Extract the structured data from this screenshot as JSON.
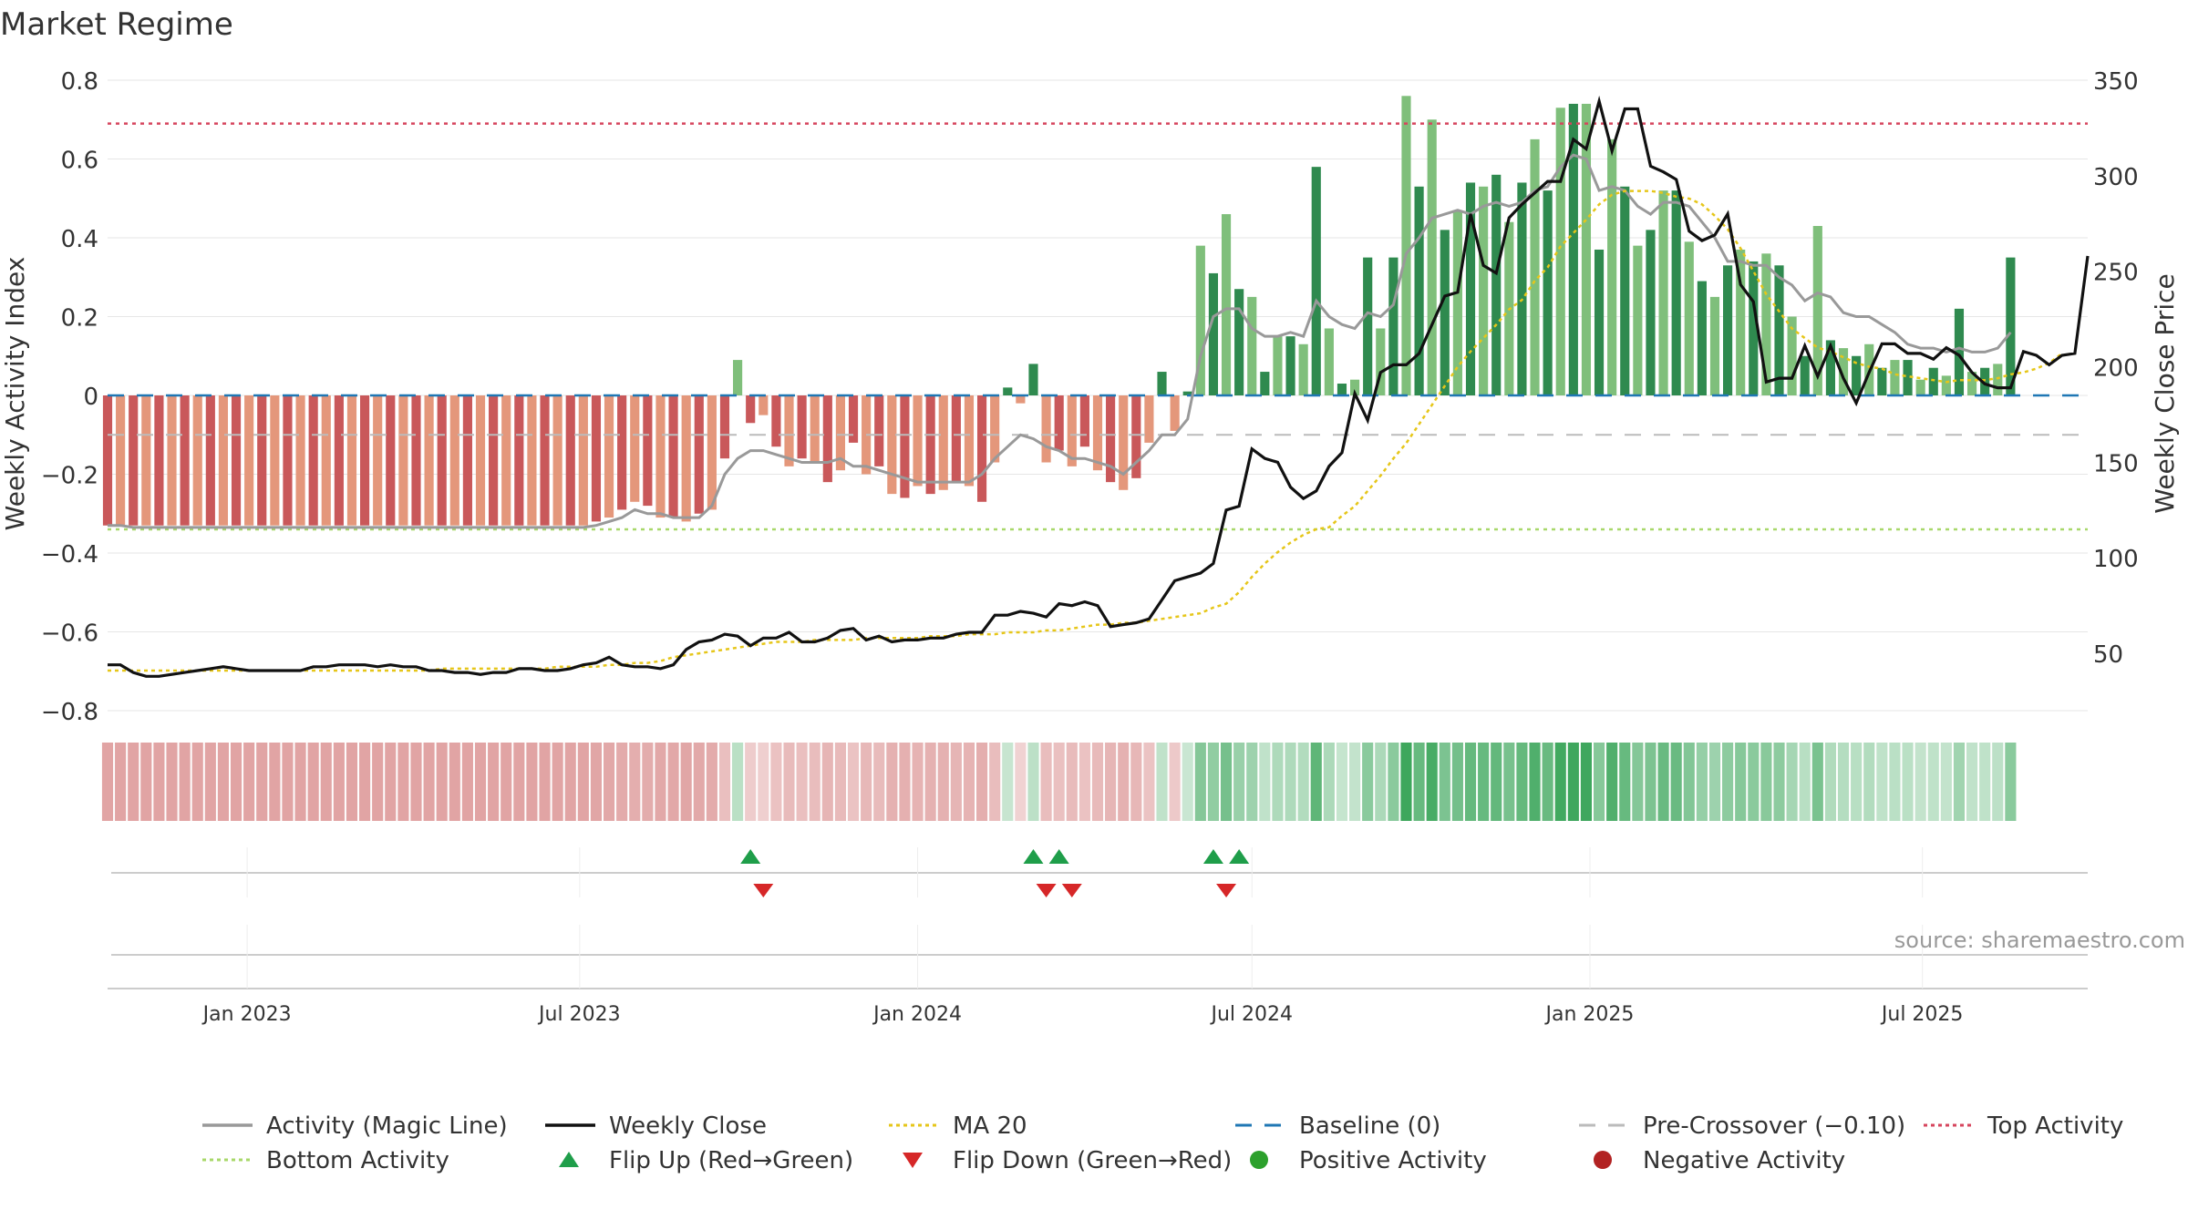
{
  "colors": {
    "red_dark": "#c9585a",
    "red_light": "#e4977b",
    "green_dark": "#2f8a4f",
    "green_light": "#7fbf7b",
    "close": "#111111",
    "activity_line": "#999999",
    "ma": "#e6c619",
    "baseline": "#1f77b4",
    "precross": "#bbbbbb",
    "top": "#d6455d",
    "bottom": "#a8d86a",
    "flip_up": "#1f9e4a",
    "flip_down": "#d62728",
    "grid": "#e6e6e6"
  },
  "chart_data": {
    "type": "bar",
    "title": "Market Regime",
    "source": "source: sharemaestro.com",
    "left_axis": {
      "label": "Weekly Activity Index",
      "ticks": [
        "0.8",
        "0.6",
        "0.4",
        "0.2",
        "0",
        "−0.2",
        "−0.4",
        "−0.6",
        "−0.8"
      ],
      "range": [
        -0.8,
        0.8
      ]
    },
    "right_axis": {
      "label": "Weekly Close Price",
      "ticks": [
        "350",
        "300",
        "250",
        "200",
        "150",
        "100",
        "50"
      ],
      "range": [
        20,
        350
      ]
    },
    "x_axis": {
      "ticks": [
        "Jan 2023",
        "Jul 2023",
        "Jan 2024",
        "Jul 2024",
        "Jan 2025",
        "Jul 2025"
      ],
      "range": [
        "2022-10-17",
        "2025-09-29"
      ]
    },
    "levels": {
      "top": 0.69,
      "bottom": -0.34,
      "pre_crossover": -0.1,
      "baseline": 0
    },
    "dates": [
      "2022-10-17",
      "2022-10-24",
      "2022-10-31",
      "2022-11-07",
      "2022-11-14",
      "2022-11-21",
      "2022-11-28",
      "2022-12-05",
      "2022-12-12",
      "2022-12-19",
      "2022-12-26",
      "2023-01-02",
      "2023-01-09",
      "2023-01-16",
      "2023-01-23",
      "2023-01-30",
      "2023-02-06",
      "2023-02-13",
      "2023-02-20",
      "2023-02-27",
      "2023-03-06",
      "2023-03-13",
      "2023-03-20",
      "2023-03-27",
      "2023-04-03",
      "2023-04-10",
      "2023-04-17",
      "2023-04-24",
      "2023-05-01",
      "2023-05-08",
      "2023-05-15",
      "2023-05-22",
      "2023-05-29",
      "2023-06-05",
      "2023-06-12",
      "2023-06-19",
      "2023-06-26",
      "2023-07-03",
      "2023-07-10",
      "2023-07-17",
      "2023-07-24",
      "2023-07-31",
      "2023-08-07",
      "2023-08-14",
      "2023-08-21",
      "2023-08-28",
      "2023-09-04",
      "2023-09-11",
      "2023-09-18",
      "2023-09-25",
      "2023-10-02",
      "2023-10-09",
      "2023-10-16",
      "2023-10-23",
      "2023-10-30",
      "2023-11-06",
      "2023-11-13",
      "2023-11-20",
      "2023-11-27",
      "2023-12-04",
      "2023-12-11",
      "2023-12-18",
      "2023-12-25",
      "2024-01-01",
      "2024-01-08",
      "2024-01-15",
      "2024-01-22",
      "2024-01-29",
      "2024-02-05",
      "2024-02-12",
      "2024-02-19",
      "2024-02-26",
      "2024-03-04",
      "2024-03-11",
      "2024-03-18",
      "2024-03-25",
      "2024-04-01",
      "2024-04-08",
      "2024-04-15",
      "2024-04-22",
      "2024-04-29",
      "2024-05-06",
      "2024-05-13",
      "2024-05-20",
      "2024-05-27",
      "2024-06-03",
      "2024-06-10",
      "2024-06-17",
      "2024-06-24",
      "2024-07-01",
      "2024-07-08",
      "2024-07-15",
      "2024-07-22",
      "2024-07-29",
      "2024-08-05",
      "2024-08-12",
      "2024-08-19",
      "2024-08-26",
      "2024-09-02",
      "2024-09-09",
      "2024-09-16",
      "2024-09-23",
      "2024-09-30",
      "2024-10-07",
      "2024-10-14",
      "2024-10-21",
      "2024-10-28",
      "2024-11-04",
      "2024-11-11",
      "2024-11-18",
      "2024-11-25",
      "2024-12-02",
      "2024-12-09",
      "2024-12-16",
      "2024-12-23",
      "2024-12-30",
      "2025-01-06",
      "2025-01-13",
      "2025-01-20",
      "2025-01-27",
      "2025-02-03",
      "2025-02-10",
      "2025-02-17",
      "2025-02-24",
      "2025-03-03",
      "2025-03-10",
      "2025-03-17",
      "2025-03-24",
      "2025-03-31",
      "2025-04-07",
      "2025-04-14",
      "2025-04-21",
      "2025-04-28",
      "2025-05-05",
      "2025-05-12",
      "2025-05-19",
      "2025-05-26",
      "2025-06-02",
      "2025-06-09",
      "2025-06-16",
      "2025-06-23",
      "2025-06-30",
      "2025-07-07",
      "2025-07-14",
      "2025-07-21",
      "2025-07-28",
      "2025-08-04",
      "2025-08-11",
      "2025-08-18",
      "2025-08-25",
      "2025-09-01",
      "2025-09-08",
      "2025-09-15",
      "2025-09-22",
      "2025-09-29"
    ],
    "activity": [
      -0.33,
      -0.33,
      -0.33,
      -0.33,
      -0.33,
      -0.33,
      -0.33,
      -0.33,
      -0.33,
      -0.33,
      -0.33,
      -0.33,
      -0.33,
      -0.33,
      -0.33,
      -0.33,
      -0.33,
      -0.33,
      -0.33,
      -0.33,
      -0.33,
      -0.33,
      -0.33,
      -0.33,
      -0.33,
      -0.33,
      -0.33,
      -0.33,
      -0.33,
      -0.33,
      -0.33,
      -0.33,
      -0.33,
      -0.33,
      -0.33,
      -0.33,
      -0.33,
      -0.33,
      -0.32,
      -0.31,
      -0.29,
      -0.27,
      -0.28,
      -0.31,
      -0.31,
      -0.32,
      -0.3,
      -0.29,
      -0.16,
      0.09,
      -0.07,
      -0.05,
      -0.13,
      -0.18,
      -0.16,
      -0.17,
      -0.22,
      -0.19,
      -0.12,
      -0.2,
      -0.18,
      -0.25,
      -0.26,
      -0.23,
      -0.25,
      -0.24,
      -0.22,
      -0.23,
      -0.27,
      -0.17,
      0.02,
      -0.02,
      0.08,
      -0.17,
      -0.14,
      -0.18,
      -0.13,
      -0.19,
      -0.22,
      -0.24,
      -0.21,
      -0.12,
      0.06,
      -0.09,
      0.01,
      0.38,
      0.31,
      0.46,
      0.27,
      0.25,
      0.06,
      0.15,
      0.15,
      0.13,
      0.58,
      0.17,
      0.03,
      0.04,
      0.35,
      0.17,
      0.35,
      0.76,
      0.53,
      0.7,
      0.42,
      0.47,
      0.54,
      0.53,
      0.56,
      0.44,
      0.54,
      0.65,
      0.52,
      0.73,
      0.74,
      0.74,
      0.37,
      0.65,
      0.53,
      0.38,
      0.42,
      0.52,
      0.52,
      0.39,
      0.29,
      0.25,
      0.33,
      0.37,
      0.34,
      0.36,
      0.33,
      0.2,
      0.1,
      0.43,
      0.14,
      0.12,
      0.1,
      0.13,
      0.07,
      0.09,
      0.09,
      0.04,
      0.07,
      0.05,
      0.22,
      0.06,
      0.07,
      0.08,
      0.35
    ],
    "magic_line": [
      -0.33,
      -0.33,
      -0.335,
      -0.335,
      -0.335,
      -0.335,
      -0.335,
      -0.335,
      -0.335,
      -0.335,
      -0.335,
      -0.335,
      -0.335,
      -0.335,
      -0.335,
      -0.335,
      -0.335,
      -0.335,
      -0.335,
      -0.335,
      -0.335,
      -0.335,
      -0.335,
      -0.335,
      -0.335,
      -0.335,
      -0.335,
      -0.335,
      -0.335,
      -0.335,
      -0.335,
      -0.335,
      -0.335,
      -0.335,
      -0.335,
      -0.335,
      -0.335,
      -0.335,
      -0.33,
      -0.32,
      -0.31,
      -0.29,
      -0.3,
      -0.3,
      -0.31,
      -0.31,
      -0.31,
      -0.28,
      -0.2,
      -0.16,
      -0.14,
      -0.14,
      -0.15,
      -0.16,
      -0.17,
      -0.17,
      -0.17,
      -0.16,
      -0.18,
      -0.18,
      -0.19,
      -0.2,
      -0.21,
      -0.22,
      -0.22,
      -0.22,
      -0.22,
      -0.22,
      -0.2,
      -0.16,
      -0.13,
      -0.1,
      -0.11,
      -0.13,
      -0.14,
      -0.16,
      -0.16,
      -0.17,
      -0.18,
      -0.2,
      -0.17,
      -0.14,
      -0.1,
      -0.1,
      -0.06,
      0.1,
      0.2,
      0.22,
      0.22,
      0.17,
      0.15,
      0.15,
      0.16,
      0.15,
      0.24,
      0.2,
      0.18,
      0.17,
      0.21,
      0.2,
      0.23,
      0.36,
      0.4,
      0.45,
      0.46,
      0.47,
      0.46,
      0.48,
      0.49,
      0.48,
      0.49,
      0.52,
      0.53,
      0.58,
      0.61,
      0.6,
      0.52,
      0.53,
      0.52,
      0.48,
      0.46,
      0.49,
      0.49,
      0.48,
      0.44,
      0.4,
      0.34,
      0.34,
      0.33,
      0.33,
      0.3,
      0.28,
      0.24,
      0.26,
      0.25,
      0.21,
      0.2,
      0.2,
      0.18,
      0.16,
      0.13,
      0.12,
      0.12,
      0.11,
      0.12,
      0.11,
      0.11,
      0.12,
      0.16
    ],
    "close": [
      44,
      44,
      40,
      38,
      38,
      39,
      40,
      41,
      42,
      43,
      42,
      41,
      41,
      41,
      41,
      41,
      43,
      43,
      44,
      44,
      44,
      43,
      44,
      43,
      43,
      41,
      41,
      40,
      40,
      39,
      40,
      40,
      42,
      42,
      41,
      41,
      42,
      44,
      45,
      48,
      44,
      43,
      43,
      42,
      44,
      52,
      56,
      57,
      60,
      59,
      54,
      58,
      58,
      61,
      56,
      56,
      58,
      62,
      63,
      57,
      59,
      56,
      57,
      57,
      58,
      58,
      60,
      61,
      61,
      70,
      70,
      72,
      71,
      69,
      76,
      75,
      77,
      75,
      64,
      65,
      66,
      68,
      78,
      88,
      90,
      92,
      97,
      125,
      127,
      157,
      152,
      150,
      137,
      131,
      135,
      148,
      155,
      186,
      172,
      197,
      201,
      201,
      207,
      222,
      237,
      239,
      280,
      253,
      249,
      278,
      285,
      291,
      297,
      297,
      319,
      314,
      339,
      313,
      335,
      335,
      305,
      302,
      298,
      271,
      266,
      269,
      280,
      243,
      234,
      192,
      194,
      194,
      211,
      195,
      211,
      194,
      181,
      197,
      212,
      212,
      207,
      207,
      204,
      210,
      206,
      197,
      191,
      189,
      189,
      208,
      206,
      201,
      206,
      207,
      258
    ],
    "ma20": [
      41,
      41,
      41,
      41,
      41,
      41,
      41,
      41,
      41,
      41,
      41,
      41,
      41,
      41,
      41,
      41,
      41,
      41,
      41,
      41,
      41,
      41,
      41,
      41,
      41,
      41,
      42,
      42,
      42,
      42,
      42,
      42,
      42,
      42,
      42,
      43,
      43,
      43,
      43,
      44,
      44,
      45,
      45,
      46,
      48,
      49,
      50,
      51,
      52,
      53,
      54,
      55,
      56,
      56,
      56,
      57,
      57,
      57,
      57,
      58,
      58,
      58,
      58,
      58,
      59,
      59,
      59,
      60,
      60,
      60,
      61,
      61,
      61,
      62,
      62,
      63,
      64,
      65,
      65,
      66,
      66,
      67,
      68,
      69,
      70,
      71,
      74,
      76,
      82,
      90,
      97,
      103,
      108,
      112,
      115,
      116,
      122,
      127,
      135,
      143,
      152,
      160,
      170,
      180,
      190,
      200,
      208,
      215,
      222,
      230,
      235,
      245,
      252,
      263,
      270,
      277,
      285,
      290,
      292,
      292,
      292,
      291,
      289,
      288,
      285,
      279,
      272,
      262,
      250,
      238,
      229,
      220,
      215,
      210,
      208,
      205,
      202,
      200,
      199,
      196,
      195,
      194,
      193,
      192,
      193,
      193,
      193,
      194,
      196,
      197,
      199,
      202,
      207
    ],
    "activity_strip": [
      -0.33,
      -0.33,
      -0.33,
      -0.33,
      -0.33,
      -0.33,
      -0.33,
      -0.33,
      -0.33,
      -0.33,
      -0.33,
      -0.33,
      -0.33,
      -0.33,
      -0.33,
      -0.33,
      -0.33,
      -0.33,
      -0.33,
      -0.33,
      -0.33,
      -0.33,
      -0.33,
      -0.33,
      -0.33,
      -0.33,
      -0.33,
      -0.33,
      -0.33,
      -0.33,
      -0.33,
      -0.33,
      -0.33,
      -0.33,
      -0.33,
      -0.33,
      -0.33,
      -0.33,
      -0.32,
      -0.31,
      -0.29,
      -0.27,
      -0.28,
      -0.31,
      -0.31,
      -0.32,
      -0.3,
      -0.29,
      -0.16,
      0.09,
      -0.07,
      -0.05,
      -0.13,
      -0.18,
      -0.16,
      -0.17,
      -0.22,
      -0.19,
      -0.12,
      -0.2,
      -0.18,
      -0.25,
      -0.26,
      -0.23,
      -0.25,
      -0.24,
      -0.22,
      -0.23,
      -0.27,
      -0.17,
      0.02,
      -0.02,
      0.08,
      -0.17,
      -0.14,
      -0.18,
      -0.13,
      -0.19,
      -0.22,
      -0.24,
      -0.21,
      -0.12,
      0.06,
      -0.09,
      0.01,
      0.38,
      0.31,
      0.46,
      0.27,
      0.25,
      0.06,
      0.15,
      0.15,
      0.13,
      0.58,
      0.17,
      0.03,
      0.04,
      0.35,
      0.17,
      0.35,
      0.76,
      0.53,
      0.7,
      0.42,
      0.47,
      0.54,
      0.53,
      0.56,
      0.44,
      0.54,
      0.65,
      0.52,
      0.73,
      0.74,
      0.74,
      0.37,
      0.65,
      0.53,
      0.38,
      0.42,
      0.52,
      0.52,
      0.39,
      0.29,
      0.25,
      0.33,
      0.37,
      0.34,
      0.36,
      0.33,
      0.2,
      0.1,
      0.43,
      0.14,
      0.12,
      0.1,
      0.13,
      0.07,
      0.09,
      0.09,
      0.04,
      0.07,
      0.05,
      0.22,
      0.06,
      0.07,
      0.08,
      0.35
    ],
    "flip_up_dates": [
      "2023-10-02",
      "2024-03-04",
      "2024-03-18",
      "2024-06-10",
      "2024-06-24"
    ],
    "flip_down_dates": [
      "2023-10-09",
      "2024-03-11",
      "2024-03-25",
      "2024-06-17"
    ],
    "legend": [
      {
        "label": "Activity (Magic Line)",
        "style": "solid",
        "color": "#999999"
      },
      {
        "label": "Weekly Close",
        "style": "solid",
        "color": "#111111"
      },
      {
        "label": "MA 20",
        "style": "dotted",
        "color": "#e6c619"
      },
      {
        "label": "Baseline (0)",
        "style": "dashed",
        "color": "#1f77b4"
      },
      {
        "label": "Pre-Crossover (−0.10)",
        "style": "dashed",
        "color": "#bbbbbb"
      },
      {
        "label": "Top Activity",
        "style": "dotted",
        "color": "#d6455d"
      },
      {
        "label": "Bottom Activity",
        "style": "dotted",
        "color": "#a8d86a"
      },
      {
        "label": "Flip Up (Red→Green)",
        "style": "tri-up",
        "color": "#1f9e4a"
      },
      {
        "label": "Flip Down (Green→Red)",
        "style": "tri-down",
        "color": "#d62728"
      },
      {
        "label": "Positive Activity",
        "style": "dot",
        "color": "#2ca02c"
      },
      {
        "label": "Negative Activity",
        "style": "dot",
        "color": "#b22222"
      }
    ]
  }
}
